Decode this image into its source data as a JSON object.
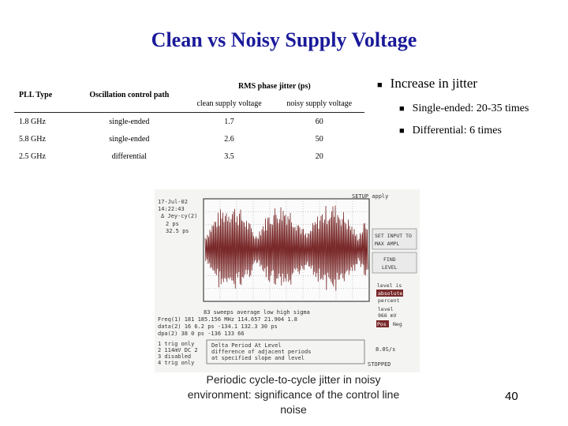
{
  "title": "Clean vs Noisy Supply Voltage",
  "table": {
    "col_pll": "PLL Type",
    "col_path": "Oscillation control path",
    "col_rms": "RMS phase jitter (ps)",
    "col_clean": "clean supply voltage",
    "col_noisy": "noisy supply voltage",
    "rows": [
      {
        "pll": "1.8 GHz",
        "path": "single-ended",
        "clean": "1.7",
        "noisy": "60"
      },
      {
        "pll": "5.8 GHz",
        "path": "single-ended",
        "clean": "2.6",
        "noisy": "50"
      },
      {
        "pll": "2.5 GHz",
        "path": "differential",
        "clean": "3.5",
        "noisy": "20"
      }
    ]
  },
  "bullets": {
    "main": "Increase in jitter",
    "sub": [
      "Single-ended: 20-35 times",
      "Differential: 6 times"
    ]
  },
  "scope": {
    "date": "17-Jul-02",
    "time": "14:22:43",
    "jitter_cycle": "Δ Jey-cy(2)",
    "ps_a": "2 ps",
    "ps_b": "32.5 ps",
    "setup": "SETUP apply",
    "menu": [
      "SET INPUT TO",
      "MAX AMPL",
      "FIND",
      "LEVEL",
      "level is",
      "absolute",
      "percent",
      "level",
      "966 mV",
      "Pos",
      "Neg"
    ],
    "stats_head": "83 sweeps   average    low    high   sigma",
    "stats_freq": "Freq(1)  181  185.156 MHz 114.657  21.904  1.8",
    "stats_data": "data(2)  16    6.2 ps  -134.1  132.3  30 ps",
    "stats_dpa": "dpa(2)   38    0 ps   -136    133    66",
    "trig_lines": [
      "1 trig only",
      "2 114mV  DC 2",
      "3 disabled",
      "4 trig only"
    ],
    "delta_lines": [
      "Delta Period At Level",
      "difference of adjacent periods",
      "at specified slope and level"
    ],
    "timebase": "8.0S/s",
    "stopped": "STOPPED"
  },
  "caption": "Periodic cycle-to-cycle jitter in noisy environment: significance of the control line noise",
  "page_number": "40",
  "colors": {
    "title": "#1a1a9a",
    "waveform": "#7a2a2a"
  }
}
